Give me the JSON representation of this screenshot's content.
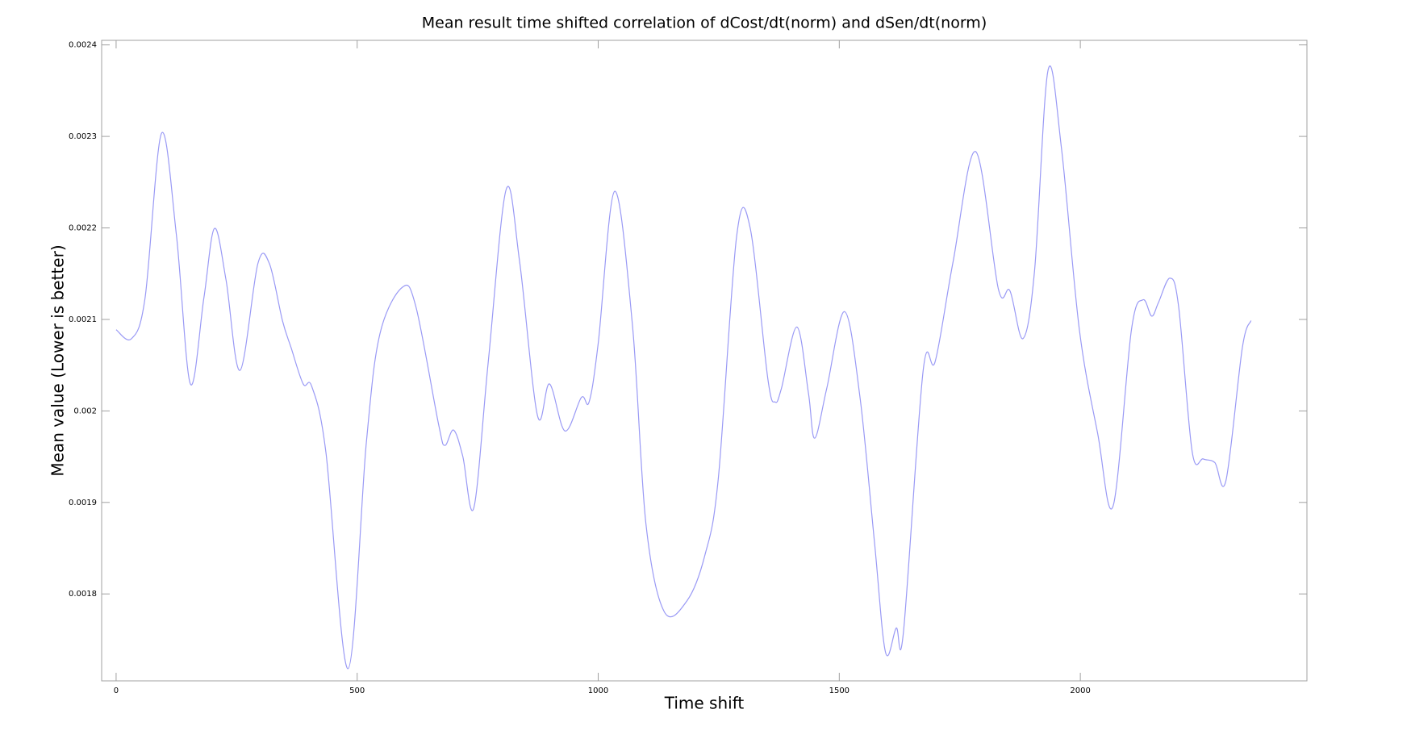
{
  "chart_data": {
    "type": "line",
    "title": "Mean result time shifted correlation of dCost/dt(norm) and dSen/dt(norm)",
    "x_label": "Time shift",
    "y_label": "Mean value (Lower is better)",
    "xlim": [
      -30,
      2470
    ],
    "ylim": [
      0.001705,
      0.002405
    ],
    "xticks": [
      0,
      500,
      1000,
      1500,
      2000
    ],
    "yticks": [
      0.0018,
      0.0019,
      0.002,
      0.0021,
      0.0022,
      0.0023,
      0.0024
    ],
    "grid": false,
    "series": [
      {
        "color": "#9a9af5",
        "x": [
          0,
          32,
          60,
          94,
          125,
          154,
          182,
          204,
          228,
          257,
          294,
          318,
          345,
          363,
          388,
          406,
          435,
          481,
          519,
          547,
          594,
          622,
          669,
          682,
          700,
          719,
          742,
          772,
          809,
          837,
          874,
          899,
          931,
          965,
          981,
          1000,
          1034,
          1071,
          1099,
          1137,
          1184,
          1221,
          1249,
          1287,
          1315,
          1352,
          1367,
          1380,
          1412,
          1436,
          1449,
          1474,
          1511,
          1543,
          1573,
          1596,
          1618,
          1633,
          1674,
          1699,
          1736,
          1783,
          1830,
          1854,
          1881,
          1905,
          1933,
          1961,
          1998,
          2036,
          2068,
          2106,
          2130,
          2148,
          2162,
          2186,
          2204,
          2232,
          2255,
          2279,
          2302,
          2336,
          2354
        ],
        "values": [
          0.0020887,
          0.002079,
          0.0021233,
          0.0023032,
          0.0021925,
          0.0020295,
          0.0021233,
          0.0021994,
          0.0021431,
          0.0020443,
          0.0021609,
          0.0021609,
          0.0020987,
          0.002069,
          0.0020295,
          0.0020265,
          0.0019554,
          0.0017183,
          0.0019653,
          0.0020838,
          0.0021352,
          0.0021135,
          0.001985,
          0.0019623,
          0.0019791,
          0.0019505,
          0.0018941,
          0.0020542,
          0.0022419,
          0.0021629,
          0.0019949,
          0.0020295,
          0.0019781,
          0.0020147,
          0.0020097,
          0.002074,
          0.00224,
          0.0020937,
          0.0018764,
          0.0017805,
          0.0017924,
          0.0018418,
          0.0019258,
          0.0021905,
          0.0022004,
          0.0020344,
          0.0020097,
          0.0020246,
          0.0020917,
          0.0020196,
          0.0019702,
          0.0020246,
          0.0021085,
          0.0020147,
          0.0018566,
          0.0017361,
          0.0017627,
          0.0017578,
          0.0020443,
          0.0020542,
          0.0021629,
          0.0022834,
          0.0021332,
          0.0021313,
          0.002079,
          0.002153,
          0.0023723,
          0.0022864,
          0.0020887,
          0.0019752,
          0.0018961,
          0.0020887,
          0.0021214,
          0.0021036,
          0.0021184,
          0.0021451,
          0.0021135,
          0.0019554,
          0.0019475,
          0.0019435,
          0.0019238,
          0.002069,
          0.0020987
        ]
      }
    ]
  }
}
